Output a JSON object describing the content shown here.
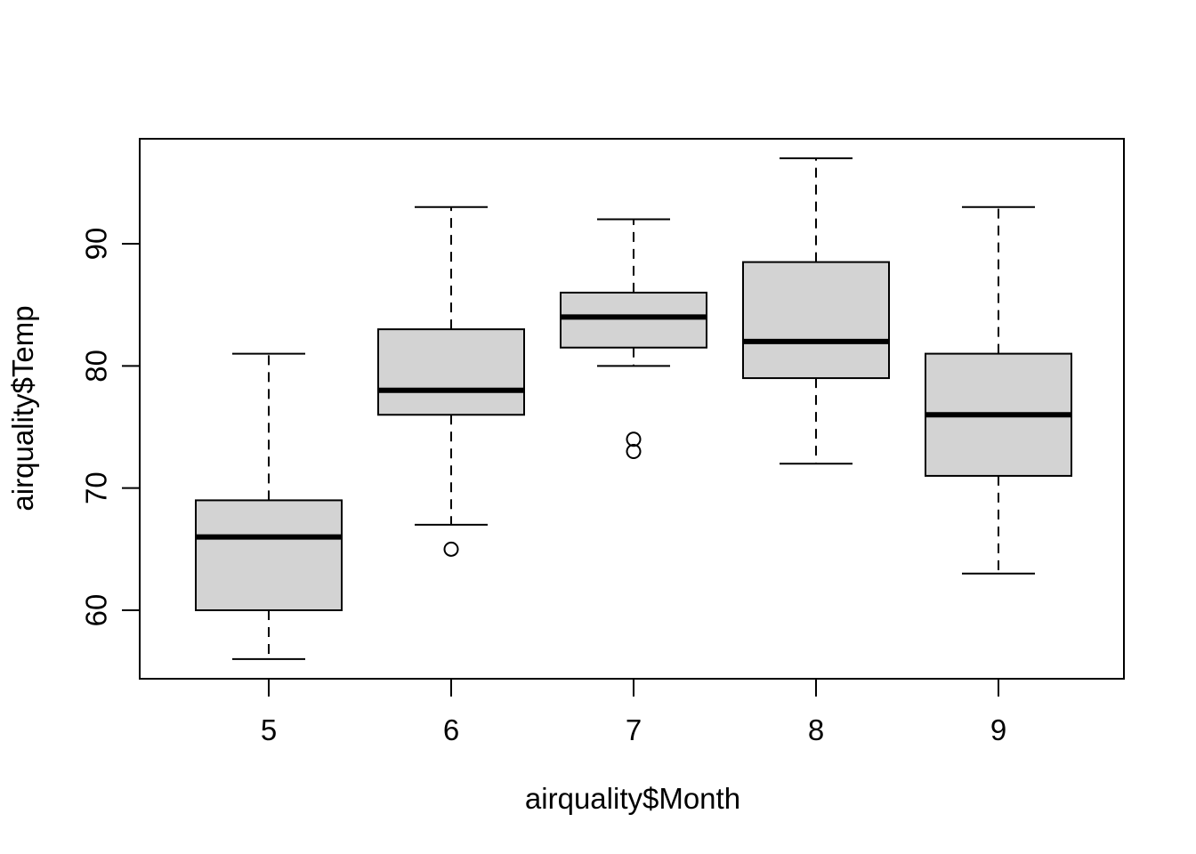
{
  "figure": {
    "background_color": "#ffffff",
    "line_color": "#000000",
    "box_fill_color": "#d3d3d3"
  },
  "chart_data": {
    "type": "boxplot",
    "title": "",
    "xlabel": "airquality$Month",
    "ylabel": "airquality$Temp",
    "x_tick_labels": [
      "5",
      "6",
      "7",
      "8",
      "9"
    ],
    "y_tick_labels": [
      "60",
      "70",
      "80",
      "90"
    ],
    "y_ticks": [
      60,
      70,
      80,
      90
    ],
    "ylim": [
      54.4,
      98.6
    ],
    "xlim": [
      4.3,
      9.7
    ],
    "grid": "off",
    "legend": "none",
    "series": [
      {
        "group": "5",
        "whisker_low": 56,
        "q1": 60,
        "median": 66,
        "q3": 69,
        "whisker_high": 81,
        "outliers": []
      },
      {
        "group": "6",
        "whisker_low": 67,
        "q1": 76,
        "median": 78,
        "q3": 83,
        "whisker_high": 93,
        "outliers": [
          65
        ]
      },
      {
        "group": "7",
        "whisker_low": 80,
        "q1": 81.5,
        "median": 84,
        "q3": 86,
        "whisker_high": 92,
        "outliers": [
          74,
          73
        ]
      },
      {
        "group": "8",
        "whisker_low": 72,
        "q1": 79,
        "median": 82,
        "q3": 88.5,
        "whisker_high": 97,
        "outliers": []
      },
      {
        "group": "9",
        "whisker_low": 63,
        "q1": 71,
        "median": 76,
        "q3": 81,
        "whisker_high": 93,
        "outliers": []
      }
    ]
  }
}
